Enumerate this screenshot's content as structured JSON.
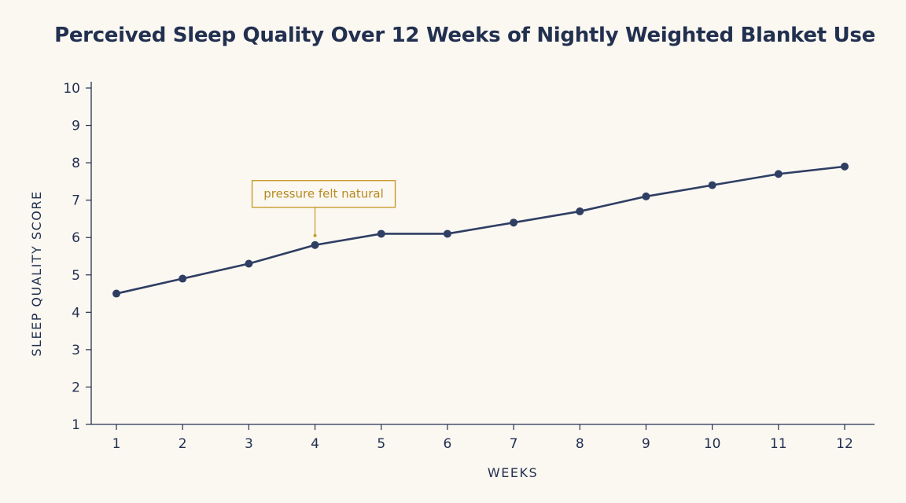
{
  "chart_data": {
    "type": "line",
    "title": "Perceived Sleep Quality Over 12 Weeks of Nightly Weighted Blanket Use",
    "xlabel": "WEEKS",
    "ylabel": "SLEEP QUALITY SCORE",
    "x": [
      1,
      2,
      3,
      4,
      5,
      6,
      7,
      8,
      9,
      10,
      11,
      12
    ],
    "y": [
      4.5,
      4.9,
      5.3,
      5.8,
      6.1,
      6.1,
      6.4,
      6.7,
      7.1,
      7.4,
      7.7,
      7.9
    ],
    "ylim": [
      1,
      10
    ],
    "yticks": [
      1,
      2,
      3,
      4,
      5,
      6,
      7,
      8,
      9,
      10
    ],
    "grid": false,
    "legend": "none",
    "annotations": [
      {
        "x": 4,
        "text": "pressure felt natural"
      }
    ],
    "colors": {
      "line": "#2f3e63",
      "axis": "#22304f",
      "annotation": "#c79a2c",
      "background": "#fbf8f2"
    }
  }
}
